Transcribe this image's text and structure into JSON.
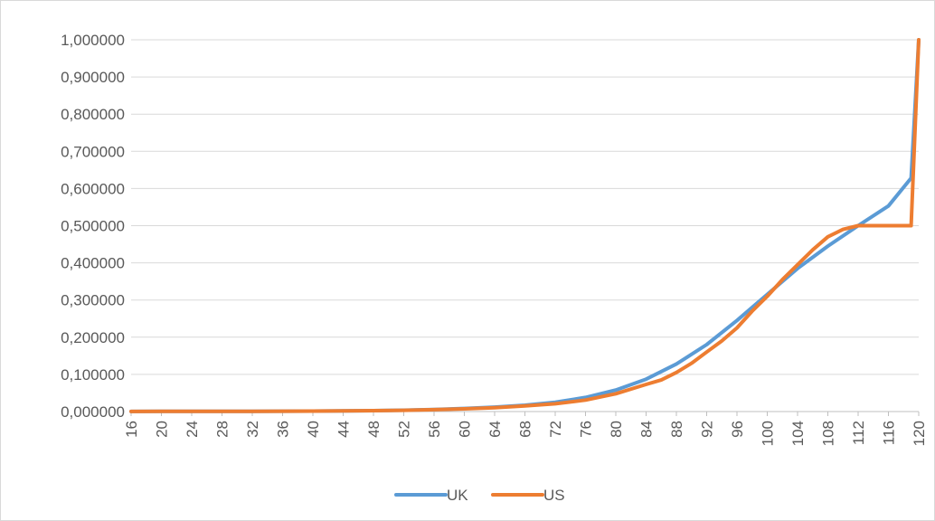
{
  "chart_data": {
    "type": "line",
    "title": "",
    "xlabel": "",
    "ylabel": "",
    "x_tick_labels": [
      "16",
      "20",
      "24",
      "28",
      "32",
      "36",
      "40",
      "44",
      "48",
      "52",
      "56",
      "60",
      "64",
      "68",
      "72",
      "76",
      "80",
      "84",
      "88",
      "92",
      "96",
      "100",
      "104",
      "108",
      "112",
      "116",
      "120"
    ],
    "y_tick_labels": [
      "0,000000",
      "0,100000",
      "0,200000",
      "0,300000",
      "0,400000",
      "0,500000",
      "0,600000",
      "0,700000",
      "0,800000",
      "0,900000",
      "1,000000"
    ],
    "xlim": [
      16,
      120
    ],
    "ylim": [
      0,
      1
    ],
    "grid": "horizontal",
    "legend_position": "bottom",
    "series": [
      {
        "name": "UK",
        "color": "#5b9bd5",
        "points": [
          [
            16,
            0.0003
          ],
          [
            20,
            0.0004
          ],
          [
            24,
            0.0005
          ],
          [
            28,
            0.0006
          ],
          [
            32,
            0.0007
          ],
          [
            36,
            0.0009
          ],
          [
            40,
            0.0012
          ],
          [
            44,
            0.0017
          ],
          [
            48,
            0.0025
          ],
          [
            52,
            0.0037
          ],
          [
            56,
            0.0055
          ],
          [
            60,
            0.0082
          ],
          [
            64,
            0.012
          ],
          [
            68,
            0.017
          ],
          [
            72,
            0.025
          ],
          [
            76,
            0.038
          ],
          [
            80,
            0.058
          ],
          [
            84,
            0.087
          ],
          [
            88,
            0.128
          ],
          [
            92,
            0.18
          ],
          [
            96,
            0.245
          ],
          [
            100,
            0.315
          ],
          [
            104,
            0.385
          ],
          [
            108,
            0.445
          ],
          [
            112,
            0.5
          ],
          [
            116,
            0.553
          ],
          [
            119,
            0.628
          ],
          [
            120,
            1.0
          ]
        ]
      },
      {
        "name": "US",
        "color": "#ed7d31",
        "points": [
          [
            16,
            0.0003
          ],
          [
            20,
            0.0004
          ],
          [
            24,
            0.0005
          ],
          [
            28,
            0.0006
          ],
          [
            32,
            0.0008
          ],
          [
            36,
            0.001
          ],
          [
            40,
            0.0013
          ],
          [
            44,
            0.0018
          ],
          [
            48,
            0.0025
          ],
          [
            52,
            0.0035
          ],
          [
            56,
            0.005
          ],
          [
            60,
            0.0072
          ],
          [
            64,
            0.0105
          ],
          [
            68,
            0.015
          ],
          [
            72,
            0.021
          ],
          [
            76,
            0.031
          ],
          [
            80,
            0.048
          ],
          [
            84,
            0.073
          ],
          [
            86,
            0.085
          ],
          [
            88,
            0.105
          ],
          [
            90,
            0.13
          ],
          [
            92,
            0.16
          ],
          [
            94,
            0.19
          ],
          [
            96,
            0.225
          ],
          [
            98,
            0.27
          ],
          [
            100,
            0.31
          ],
          [
            102,
            0.355
          ],
          [
            104,
            0.395
          ],
          [
            106,
            0.435
          ],
          [
            108,
            0.47
          ],
          [
            110,
            0.49
          ],
          [
            112,
            0.5
          ],
          [
            119,
            0.5
          ],
          [
            120,
            1.0
          ]
        ]
      }
    ]
  }
}
